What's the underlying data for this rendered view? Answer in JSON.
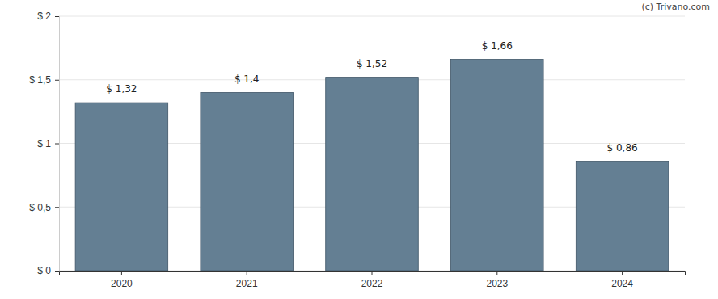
{
  "chart_data": {
    "type": "bar",
    "annotations": [
      "(c) Trivano.com"
    ],
    "categories": [
      "2020",
      "2021",
      "2022",
      "2023",
      "2024"
    ],
    "values": [
      1.32,
      1.4,
      1.52,
      1.66,
      0.86
    ],
    "value_labels": [
      "$ 1,32",
      "$ 1,4",
      "$ 1,52",
      "$ 1,66",
      "$ 0,86"
    ],
    "data_labels": true,
    "color": "#647f93",
    "ylim": [
      0,
      2
    ],
    "yticks": [
      {
        "value": 0,
        "label": "$ 0"
      },
      {
        "value": 0.5,
        "label": "$ 0,5"
      },
      {
        "value": 1,
        "label": "$ 1"
      },
      {
        "value": 1.5,
        "label": "$ 1,5"
      },
      {
        "value": 2,
        "label": "$ 2"
      }
    ],
    "grid": true
  }
}
